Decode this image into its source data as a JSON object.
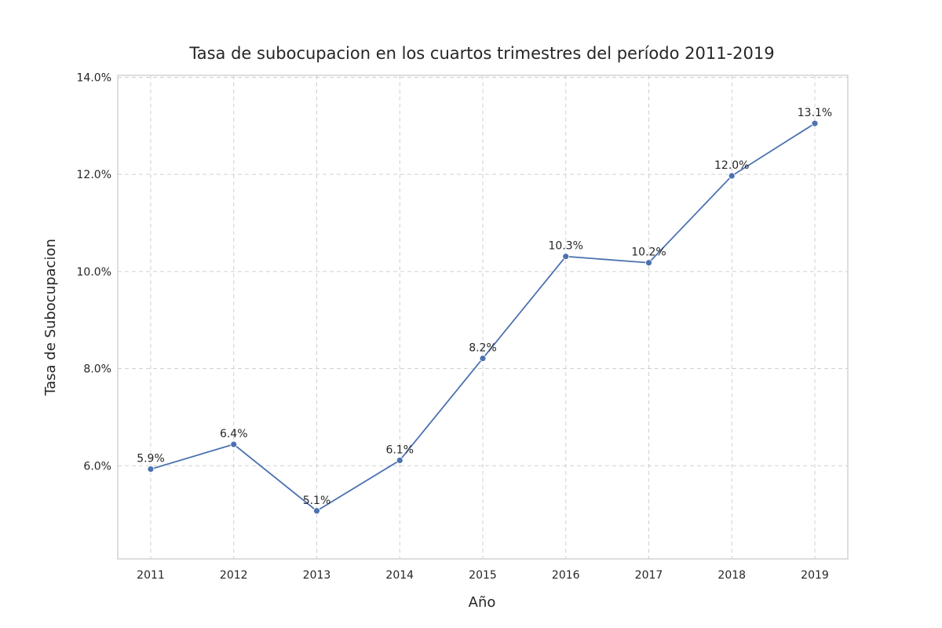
{
  "chart_data": {
    "type": "line",
    "title": "Tasa de subocupacion en los cuartos trimestres del período 2011-2019",
    "xlabel": "Año",
    "ylabel": "Tasa de Subocupacion",
    "categories": [
      "2011",
      "2012",
      "2013",
      "2014",
      "2015",
      "2016",
      "2017",
      "2018",
      "2019"
    ],
    "series": [
      {
        "values": [
          5.93,
          6.44,
          5.07,
          6.11,
          8.21,
          10.31,
          10.18,
          11.97,
          13.05
        ],
        "labels": [
          "5.9%",
          "6.4%",
          "5.1%",
          "6.1%",
          "8.2%",
          "10.3%",
          "10.2%",
          "12.0%",
          "13.1%"
        ],
        "color": "#4c72b0"
      }
    ],
    "y_ticks": [
      6,
      8,
      10,
      12,
      14
    ],
    "y_tick_labels": [
      "6.0%",
      "8.0%",
      "10.0%",
      "12.0%",
      "14.0%"
    ],
    "ylim": [
      4.08,
      14.04
    ],
    "grid": true,
    "marker": "circle"
  }
}
